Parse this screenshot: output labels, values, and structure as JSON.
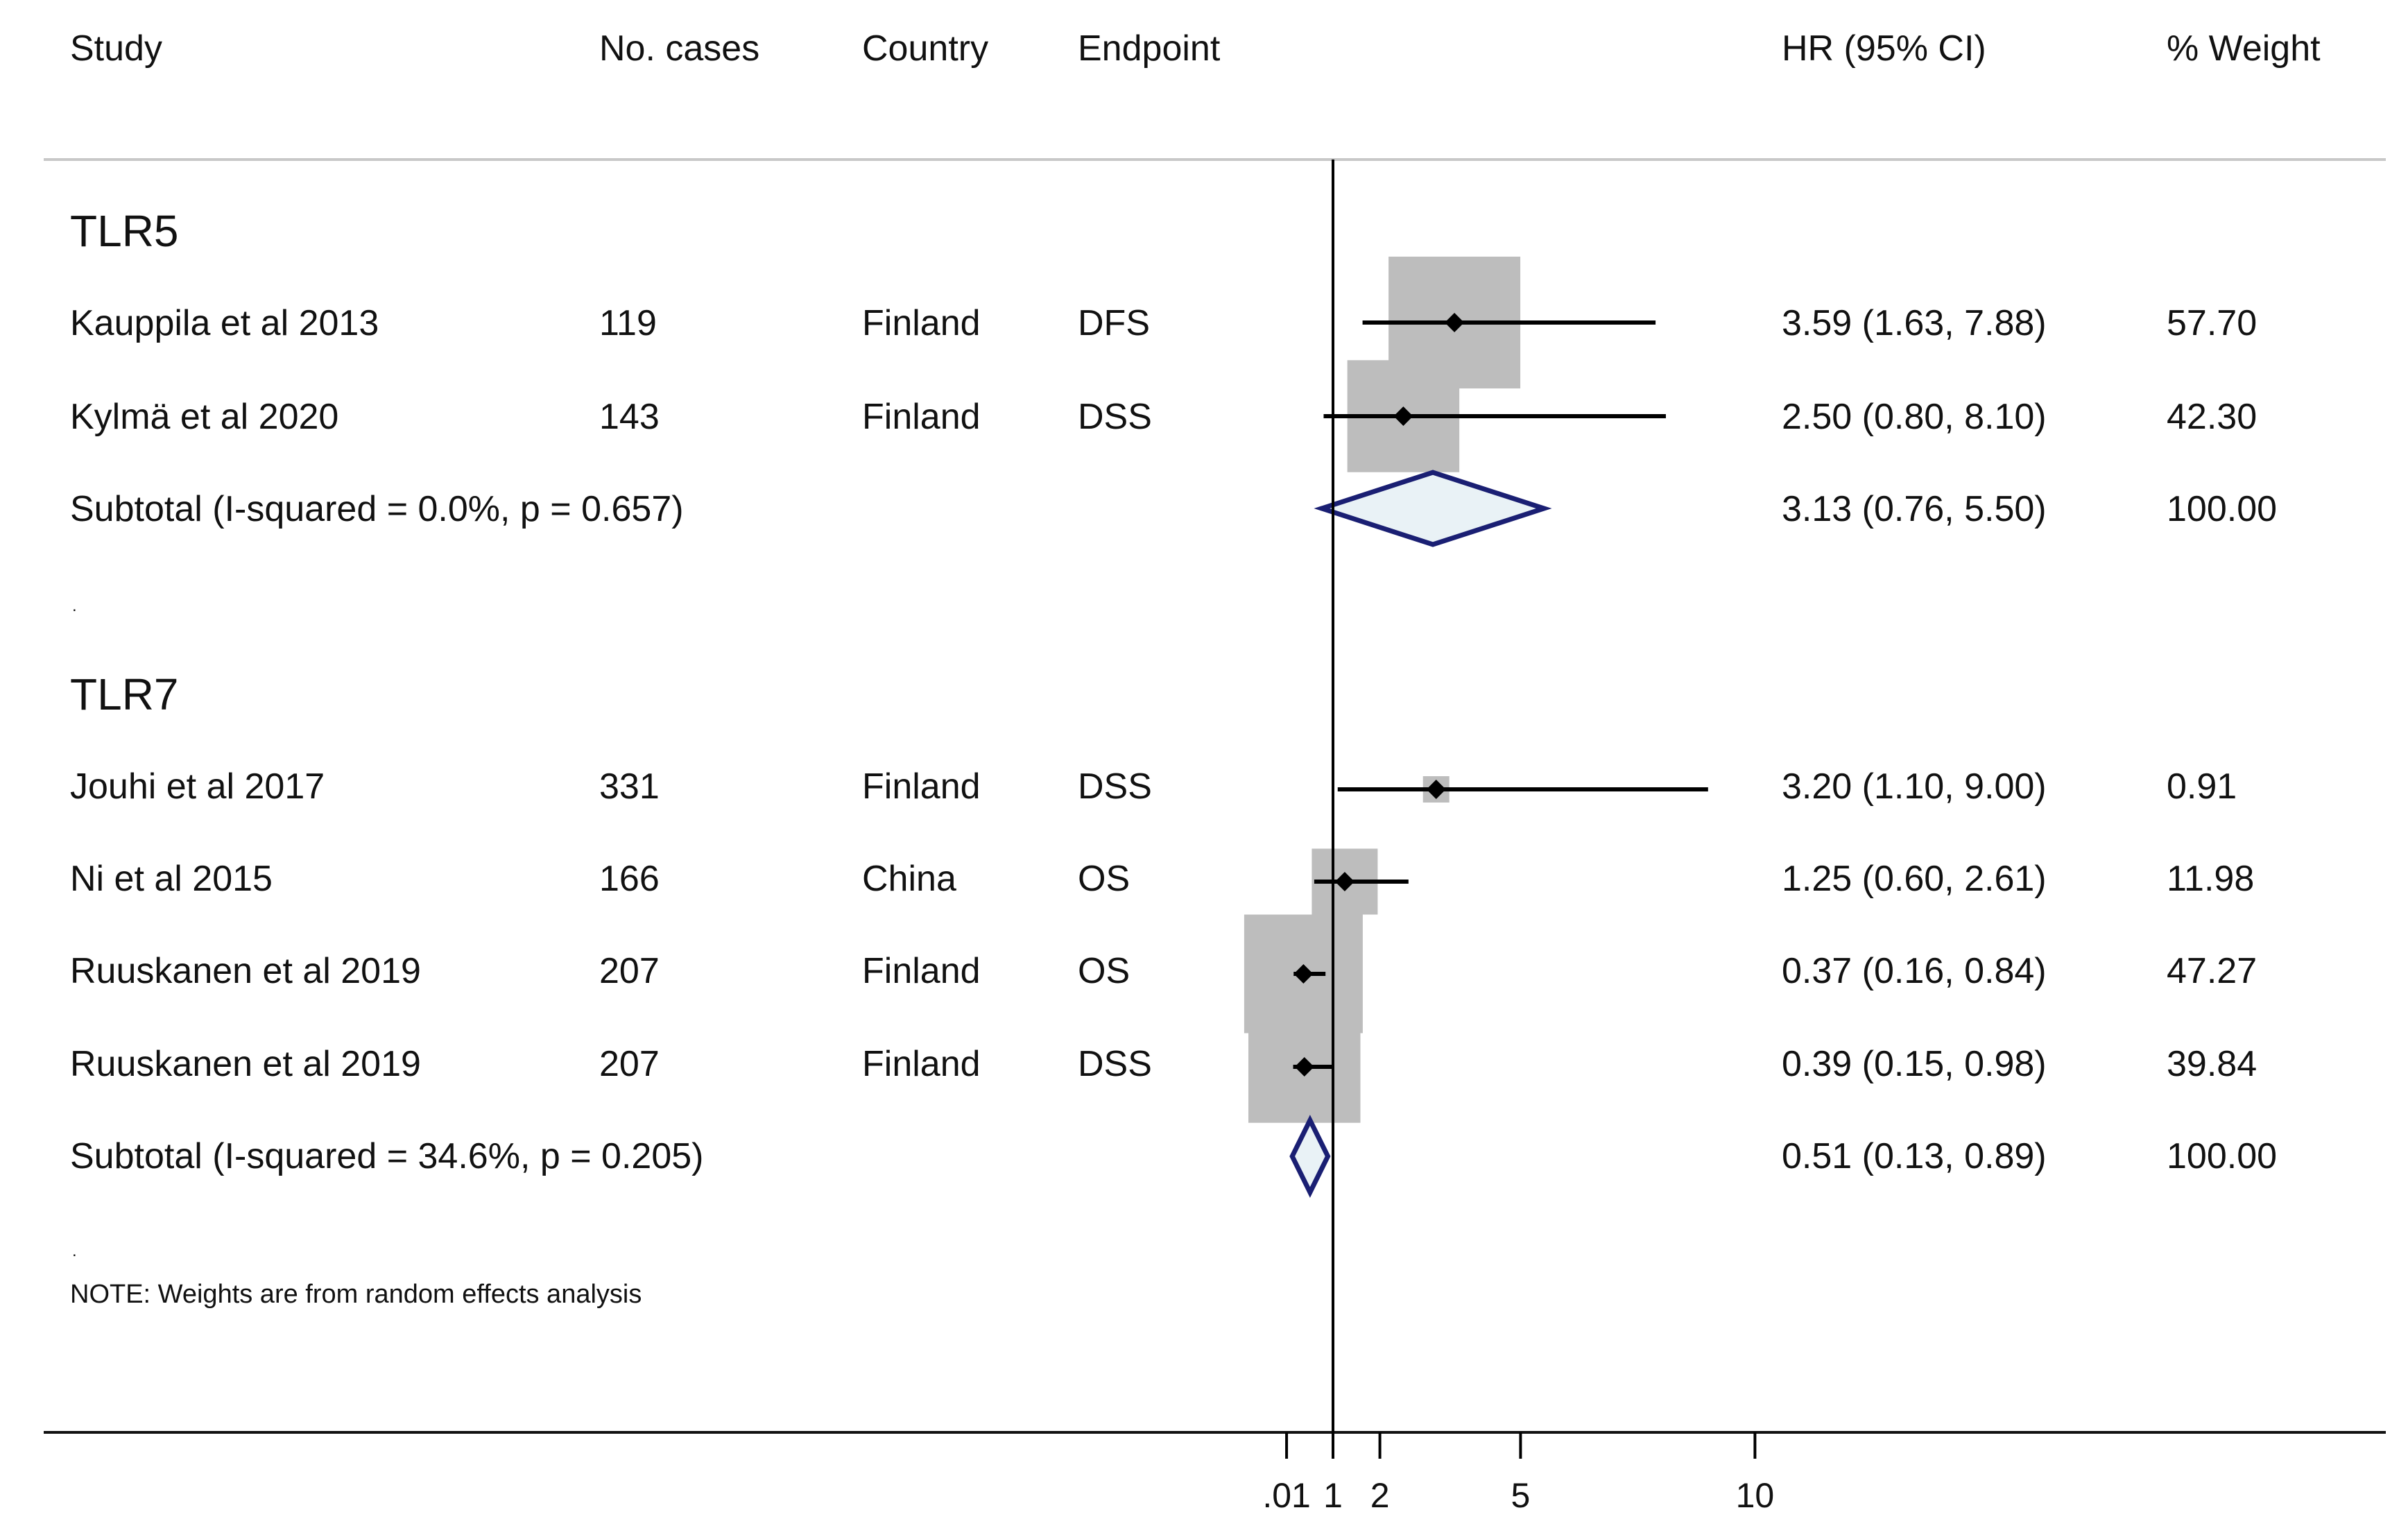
{
  "headers": {
    "study": "Study",
    "cases": "No. cases",
    "country": "Country",
    "endpoint": "Endpoint",
    "hr": "HR (95% CI)",
    "weight": "% Weight"
  },
  "groups": [
    {
      "label": "TLR5",
      "studies": [
        {
          "study": "Kauppila et al 2013",
          "cases": "119",
          "country": "Finland",
          "endpoint": "DFS",
          "hr_text": "3.59 (1.63, 7.88)",
          "weight_text": "57.70"
        },
        {
          "study": "Kylmä et al 2020",
          "cases": "143",
          "country": "Finland",
          "endpoint": "DSS",
          "hr_text": "2.50 (0.80, 8.10)",
          "weight_text": "42.30"
        }
      ],
      "subtotal": {
        "label": "Subtotal  (I-squared = 0.0%, p = 0.657)",
        "hr_text": "3.13 (0.76, 5.50)",
        "weight_text": "100.00"
      }
    },
    {
      "label": "TLR7",
      "studies": [
        {
          "study": "Jouhi et al 2017",
          "cases": "331",
          "country": "Finland",
          "endpoint": "DSS",
          "hr_text": "3.20 (1.10, 9.00)",
          "weight_text": "0.91"
        },
        {
          "study": "Ni et al 2015",
          "cases": "166",
          "country": "China",
          "endpoint": "OS",
          "hr_text": "1.25 (0.60, 2.61)",
          "weight_text": "11.98"
        },
        {
          "study": "Ruuskanen et al 2019",
          "cases": "207",
          "country": "Finland",
          "endpoint": "OS",
          "hr_text": "0.37 (0.16, 0.84)",
          "weight_text": "47.27"
        },
        {
          "study": "Ruuskanen et al 2019",
          "cases": "207",
          "country": "Finland",
          "endpoint": "DSS",
          "hr_text": "0.39 (0.15, 0.98)",
          "weight_text": "39.84"
        }
      ],
      "subtotal": {
        "label": "Subtotal  (I-squared = 34.6%, p = 0.205)",
        "hr_text": "0.51 (0.13, 0.89)",
        "weight_text": "100.00"
      }
    }
  ],
  "separator": ".",
  "note": "NOTE: Weights are from random effects analysis",
  "chart_data": {
    "type": "forest",
    "xlabel": "",
    "xlim": [
      0.01,
      10
    ],
    "reference_line": 1,
    "ticks": [
      {
        "value": 0.01,
        "label": ".01"
      },
      {
        "value": 1,
        "label": "1"
      },
      {
        "value": 2,
        "label": "2"
      },
      {
        "value": 5,
        "label": "5"
      },
      {
        "value": 10,
        "label": "10"
      }
    ],
    "series": [
      {
        "group": "TLR5",
        "study": "Kauppila et al 2013",
        "hr": 3.59,
        "lo": 1.63,
        "hi": 7.88,
        "weight": 57.7,
        "box_scale": 1.0
      },
      {
        "group": "TLR5",
        "study": "Kylmä et al 2020",
        "hr": 2.5,
        "lo": 0.8,
        "hi": 8.1,
        "weight": 42.3,
        "box_scale": 0.85
      },
      {
        "group": "TLR5",
        "study": "Subtotal",
        "hr": 3.13,
        "lo": 0.76,
        "hi": 5.5,
        "weight": 100,
        "subtotal": true
      },
      {
        "group": "TLR7",
        "study": "Jouhi et al 2017",
        "hr": 3.2,
        "lo": 1.1,
        "hi": 9.0,
        "weight": 0.91,
        "box_scale": 0.2
      },
      {
        "group": "TLR7",
        "study": "Ni et al 2015",
        "hr": 1.25,
        "lo": 0.6,
        "hi": 2.61,
        "weight": 11.98,
        "box_scale": 0.5
      },
      {
        "group": "TLR7",
        "study": "Ruuskanen et al 2019",
        "hr": 0.37,
        "lo": 0.16,
        "hi": 0.84,
        "weight": 47.27,
        "box_scale": 0.9
      },
      {
        "group": "TLR7",
        "study": "Ruuskanen et al 2019",
        "hr": 0.39,
        "lo": 0.15,
        "hi": 0.98,
        "weight": 39.84,
        "box_scale": 0.85
      },
      {
        "group": "TLR7",
        "study": "Subtotal",
        "hr": 0.51,
        "lo": 0.13,
        "hi": 0.89,
        "weight": 100,
        "subtotal": true
      }
    ]
  }
}
